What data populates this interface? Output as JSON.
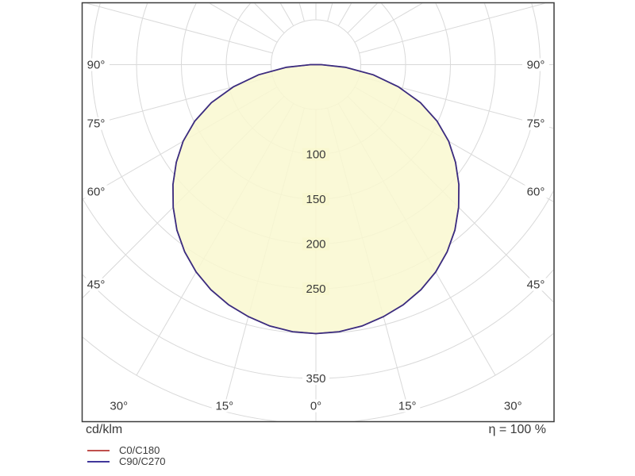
{
  "footer": {
    "units_label": "cd/klm",
    "efficiency_label": "η = 100 %"
  },
  "legend": {
    "items": [
      {
        "label": "C0/C180",
        "color": "#c0504d"
      },
      {
        "label": "C90/C270",
        "color": "#41379b"
      }
    ]
  },
  "chart_data": {
    "type": "polar",
    "subtype": "luminous-intensity-distribution",
    "units": "cd/klm",
    "efficiency": "η = 100 %",
    "gamma_deg": [
      0,
      5,
      10,
      15,
      20,
      25,
      30,
      35,
      40,
      45,
      50,
      55,
      60,
      65,
      70,
      75,
      80,
      85,
      90
    ],
    "symmetric_mirror": true,
    "series": [
      {
        "name": "C0/C180",
        "color": "#c0504d",
        "values": [
          300,
          299,
          296,
          291,
          285,
          277,
          267,
          255,
          241,
          225,
          208,
          190,
          171,
          149,
          124,
          95,
          65,
          33,
          6
        ]
      },
      {
        "name": "C90/C270",
        "color": "#41379b",
        "values": [
          300,
          299,
          296,
          291,
          285,
          277,
          267,
          255,
          241,
          225,
          208,
          190,
          171,
          149,
          124,
          95,
          65,
          33,
          6
        ]
      }
    ],
    "radial_axis": {
      "ring_step": 50,
      "ring_max": 400,
      "range": [
        0,
        400
      ],
      "tick_labels": [
        100,
        150,
        200,
        250,
        350
      ]
    },
    "angle_axis": {
      "side_labels_deg": [
        90,
        75,
        60,
        45
      ],
      "bottom_labels_deg": [
        -30,
        -15,
        0,
        15,
        30
      ],
      "radial_line_step_deg": 15
    },
    "style": {
      "fill_color": "#f9f8d0",
      "grid_color": "#d9d9d9",
      "border_color": "#3c3c3c",
      "text_color": "#3a3a3a",
      "background": "#ffffff"
    }
  }
}
